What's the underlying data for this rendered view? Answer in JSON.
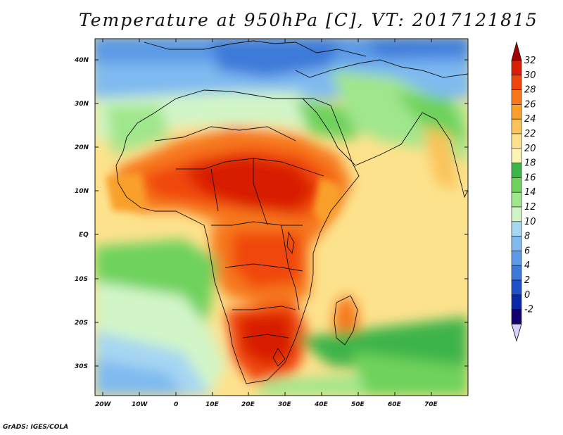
{
  "title": "Temperature at 950hPa [C], VT: 2017121815",
  "footer": "GrADS: IGES/COLA",
  "map": {
    "lat_labels": [
      "40N",
      "30N",
      "20N",
      "10N",
      "EQ",
      "10S",
      "20S",
      "30S"
    ],
    "lon_labels": [
      "20W",
      "10W",
      "0",
      "10E",
      "20E",
      "30E",
      "40E",
      "50E",
      "60E",
      "70E"
    ]
  },
  "colorbar": {
    "labels": [
      "32",
      "30",
      "28",
      "26",
      "24",
      "22",
      "20",
      "18",
      "16",
      "14",
      "12",
      "10",
      "8",
      "6",
      "4",
      "2",
      "0",
      "-2"
    ],
    "colors": [
      "#a50000",
      "#d81e05",
      "#f0460c",
      "#f6781a",
      "#f9a02c",
      "#fac35a",
      "#fde28d",
      "#fdf5b6",
      "#3cb44a",
      "#6ed25c",
      "#a0e68c",
      "#d2f5c8",
      "#a6d6f2",
      "#7fbaf0",
      "#5c9ae6",
      "#3c7ad9",
      "#1e50c8",
      "#0a28a5",
      "#14006e",
      "#d6d0ff"
    ]
  }
}
